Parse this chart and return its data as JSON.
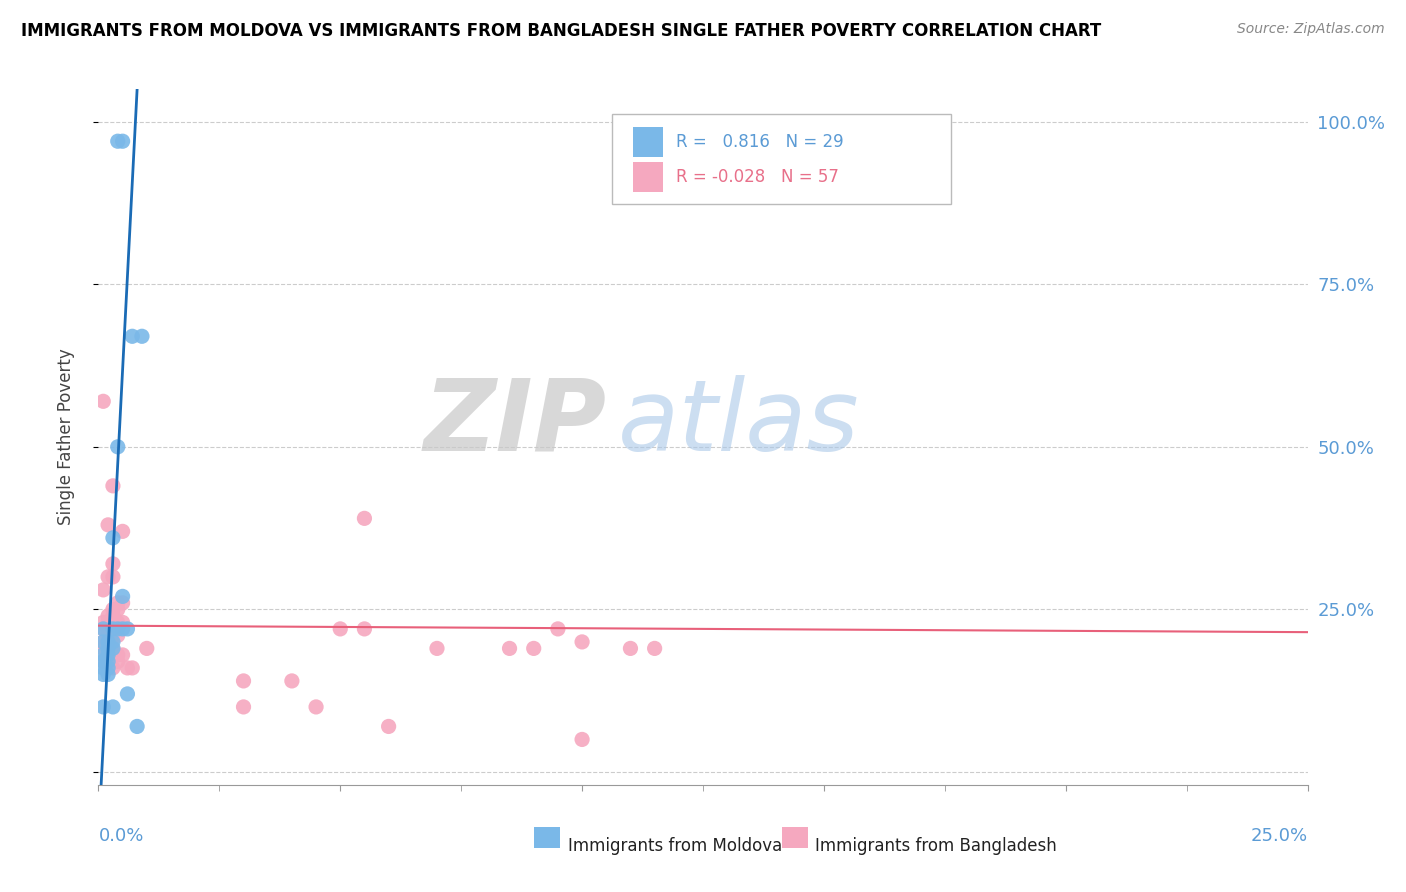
{
  "title": "IMMIGRANTS FROM MOLDOVA VS IMMIGRANTS FROM BANGLADESH SINGLE FATHER POVERTY CORRELATION CHART",
  "source": "Source: ZipAtlas.com",
  "ylabel": "Single Father Poverty",
  "legend_moldova": "Immigrants from Moldova",
  "legend_bangladesh": "Immigrants from Bangladesh",
  "R_moldova": "0.816",
  "N_moldova": "29",
  "R_bangladesh": "-0.028",
  "N_bangladesh": "57",
  "xlim": [
    0.0,
    0.25
  ],
  "ylim": [
    -0.02,
    1.05
  ],
  "color_moldova": "#7ab8e8",
  "color_moldova_line": "#1a6bb5",
  "color_bangladesh": "#f5a8bf",
  "color_bangladesh_line": "#e8607a",
  "moldova_scatter": [
    [
      0.004,
      0.97
    ],
    [
      0.005,
      0.97
    ],
    [
      0.007,
      0.67
    ],
    [
      0.009,
      0.67
    ],
    [
      0.004,
      0.5
    ],
    [
      0.003,
      0.36
    ],
    [
      0.005,
      0.27
    ],
    [
      0.001,
      0.22
    ],
    [
      0.003,
      0.22
    ],
    [
      0.004,
      0.22
    ],
    [
      0.005,
      0.22
    ],
    [
      0.006,
      0.22
    ],
    [
      0.001,
      0.2
    ],
    [
      0.002,
      0.2
    ],
    [
      0.003,
      0.2
    ],
    [
      0.002,
      0.19
    ],
    [
      0.003,
      0.19
    ],
    [
      0.001,
      0.18
    ],
    [
      0.002,
      0.18
    ],
    [
      0.001,
      0.17
    ],
    [
      0.002,
      0.17
    ],
    [
      0.001,
      0.16
    ],
    [
      0.002,
      0.16
    ],
    [
      0.001,
      0.15
    ],
    [
      0.002,
      0.15
    ],
    [
      0.001,
      0.1
    ],
    [
      0.003,
      0.1
    ],
    [
      0.006,
      0.12
    ],
    [
      0.008,
      0.07
    ]
  ],
  "bangladesh_scatter": [
    [
      0.001,
      0.57
    ],
    [
      0.003,
      0.44
    ],
    [
      0.002,
      0.38
    ],
    [
      0.005,
      0.37
    ],
    [
      0.003,
      0.32
    ],
    [
      0.002,
      0.3
    ],
    [
      0.003,
      0.3
    ],
    [
      0.001,
      0.28
    ],
    [
      0.004,
      0.26
    ],
    [
      0.005,
      0.26
    ],
    [
      0.003,
      0.25
    ],
    [
      0.004,
      0.25
    ],
    [
      0.002,
      0.24
    ],
    [
      0.003,
      0.24
    ],
    [
      0.001,
      0.23
    ],
    [
      0.002,
      0.23
    ],
    [
      0.003,
      0.23
    ],
    [
      0.004,
      0.23
    ],
    [
      0.005,
      0.23
    ],
    [
      0.001,
      0.22
    ],
    [
      0.002,
      0.22
    ],
    [
      0.003,
      0.22
    ],
    [
      0.004,
      0.22
    ],
    [
      0.002,
      0.21
    ],
    [
      0.003,
      0.21
    ],
    [
      0.004,
      0.21
    ],
    [
      0.001,
      0.2
    ],
    [
      0.002,
      0.2
    ],
    [
      0.001,
      0.19
    ],
    [
      0.002,
      0.19
    ],
    [
      0.003,
      0.19
    ],
    [
      0.003,
      0.18
    ],
    [
      0.004,
      0.18
    ],
    [
      0.005,
      0.18
    ],
    [
      0.001,
      0.17
    ],
    [
      0.002,
      0.17
    ],
    [
      0.004,
      0.17
    ],
    [
      0.003,
      0.16
    ],
    [
      0.006,
      0.16
    ],
    [
      0.007,
      0.16
    ],
    [
      0.01,
      0.19
    ],
    [
      0.055,
      0.39
    ],
    [
      0.05,
      0.22
    ],
    [
      0.055,
      0.22
    ],
    [
      0.07,
      0.19
    ],
    [
      0.085,
      0.19
    ],
    [
      0.09,
      0.19
    ],
    [
      0.1,
      0.2
    ],
    [
      0.095,
      0.22
    ],
    [
      0.11,
      0.19
    ],
    [
      0.115,
      0.19
    ],
    [
      0.03,
      0.14
    ],
    [
      0.04,
      0.14
    ],
    [
      0.03,
      0.1
    ],
    [
      0.045,
      0.1
    ],
    [
      0.06,
      0.07
    ],
    [
      0.1,
      0.05
    ]
  ]
}
